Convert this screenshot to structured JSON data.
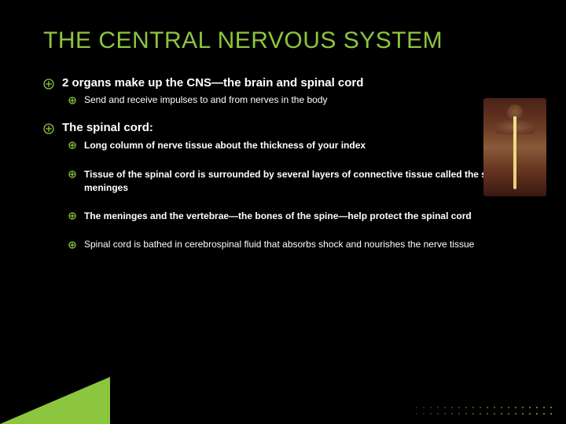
{
  "colors": {
    "accent": "#8cc63f",
    "accent_dark": "#6a9c2e",
    "white": "#ffffff",
    "bg": "#000000",
    "dot": "#8cc63f"
  },
  "title": "THE CENTRAL NERVOUS SYSTEM",
  "bullets": [
    {
      "level": 1,
      "bold": true,
      "text": "2 organs make up the CNS—the brain and spinal cord"
    },
    {
      "level": 2,
      "bold": false,
      "text": "Send and receive impulses to and from nerves in the body"
    },
    {
      "level": 1,
      "bold": true,
      "text": "The spinal cord:"
    },
    {
      "level": 2,
      "bold": true,
      "text": "Long column of nerve tissue about the thickness of your index"
    },
    {
      "level": 2,
      "bold": true,
      "text": "Tissue of the spinal cord is surrounded by several layers of connective tissue called the spinal meninges"
    },
    {
      "level": 2,
      "bold": true,
      "text": "The meninges and the vertebrae—the bones of the spine—help protect the spinal cord"
    },
    {
      "level": 2,
      "bold": false,
      "text": "Spinal cord is bathed in cerebrospinal fluid that absorbs shock and nourishes the nerve tissue"
    }
  ],
  "icon": {
    "outer_color": "#8cc63f",
    "size_l1": 14,
    "size_l2": 10
  }
}
